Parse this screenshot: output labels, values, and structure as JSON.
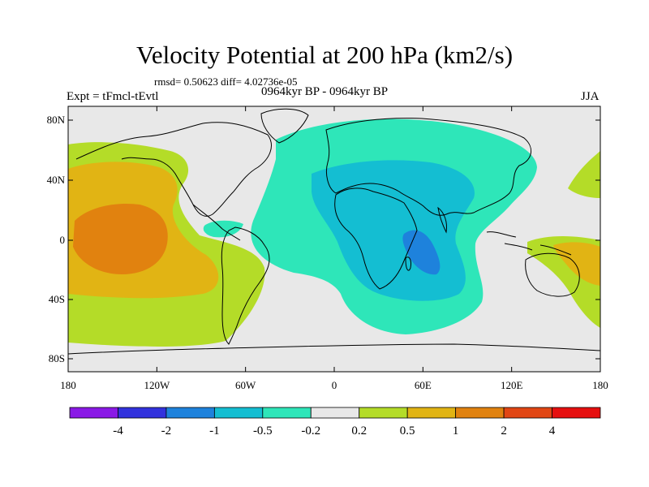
{
  "title": "Velocity Potential at 200 hPa (km2/s)",
  "stats": "rmsd= 0.50623 diff= 4.02736e-05",
  "expt": "Expt = tFmcl-tEvtl",
  "period": "0964kyr BP - 0964kyr BP",
  "season": "JJA",
  "lat_ticks": [
    "80N",
    "40N",
    "0",
    "40S",
    "80S"
  ],
  "lon_ticks": [
    "180",
    "120W",
    "60W",
    "0",
    "60E",
    "120E",
    "180"
  ],
  "colorbar": {
    "labels": [
      "-4",
      "-2",
      "-1",
      "-0.5",
      "-0.2",
      "0.2",
      "0.5",
      "1",
      "2",
      "4"
    ],
    "colors": [
      "#8a19e6",
      "#3232dd",
      "#1e82dc",
      "#14bed2",
      "#2ee6b9",
      "#e8e8e8",
      "#b4dc28",
      "#e1b414",
      "#e1820f",
      "#e14614",
      "#e60f0f"
    ]
  },
  "map_colors": {
    "background": "#e8e8e8",
    "positive_weak": "#b4dc28",
    "positive_mid": "#e1b414",
    "positive_strong": "#e1820f",
    "negative_weak": "#2ee6b9",
    "negative_mid": "#14bed2",
    "negative_strong": "#1e82dc"
  }
}
